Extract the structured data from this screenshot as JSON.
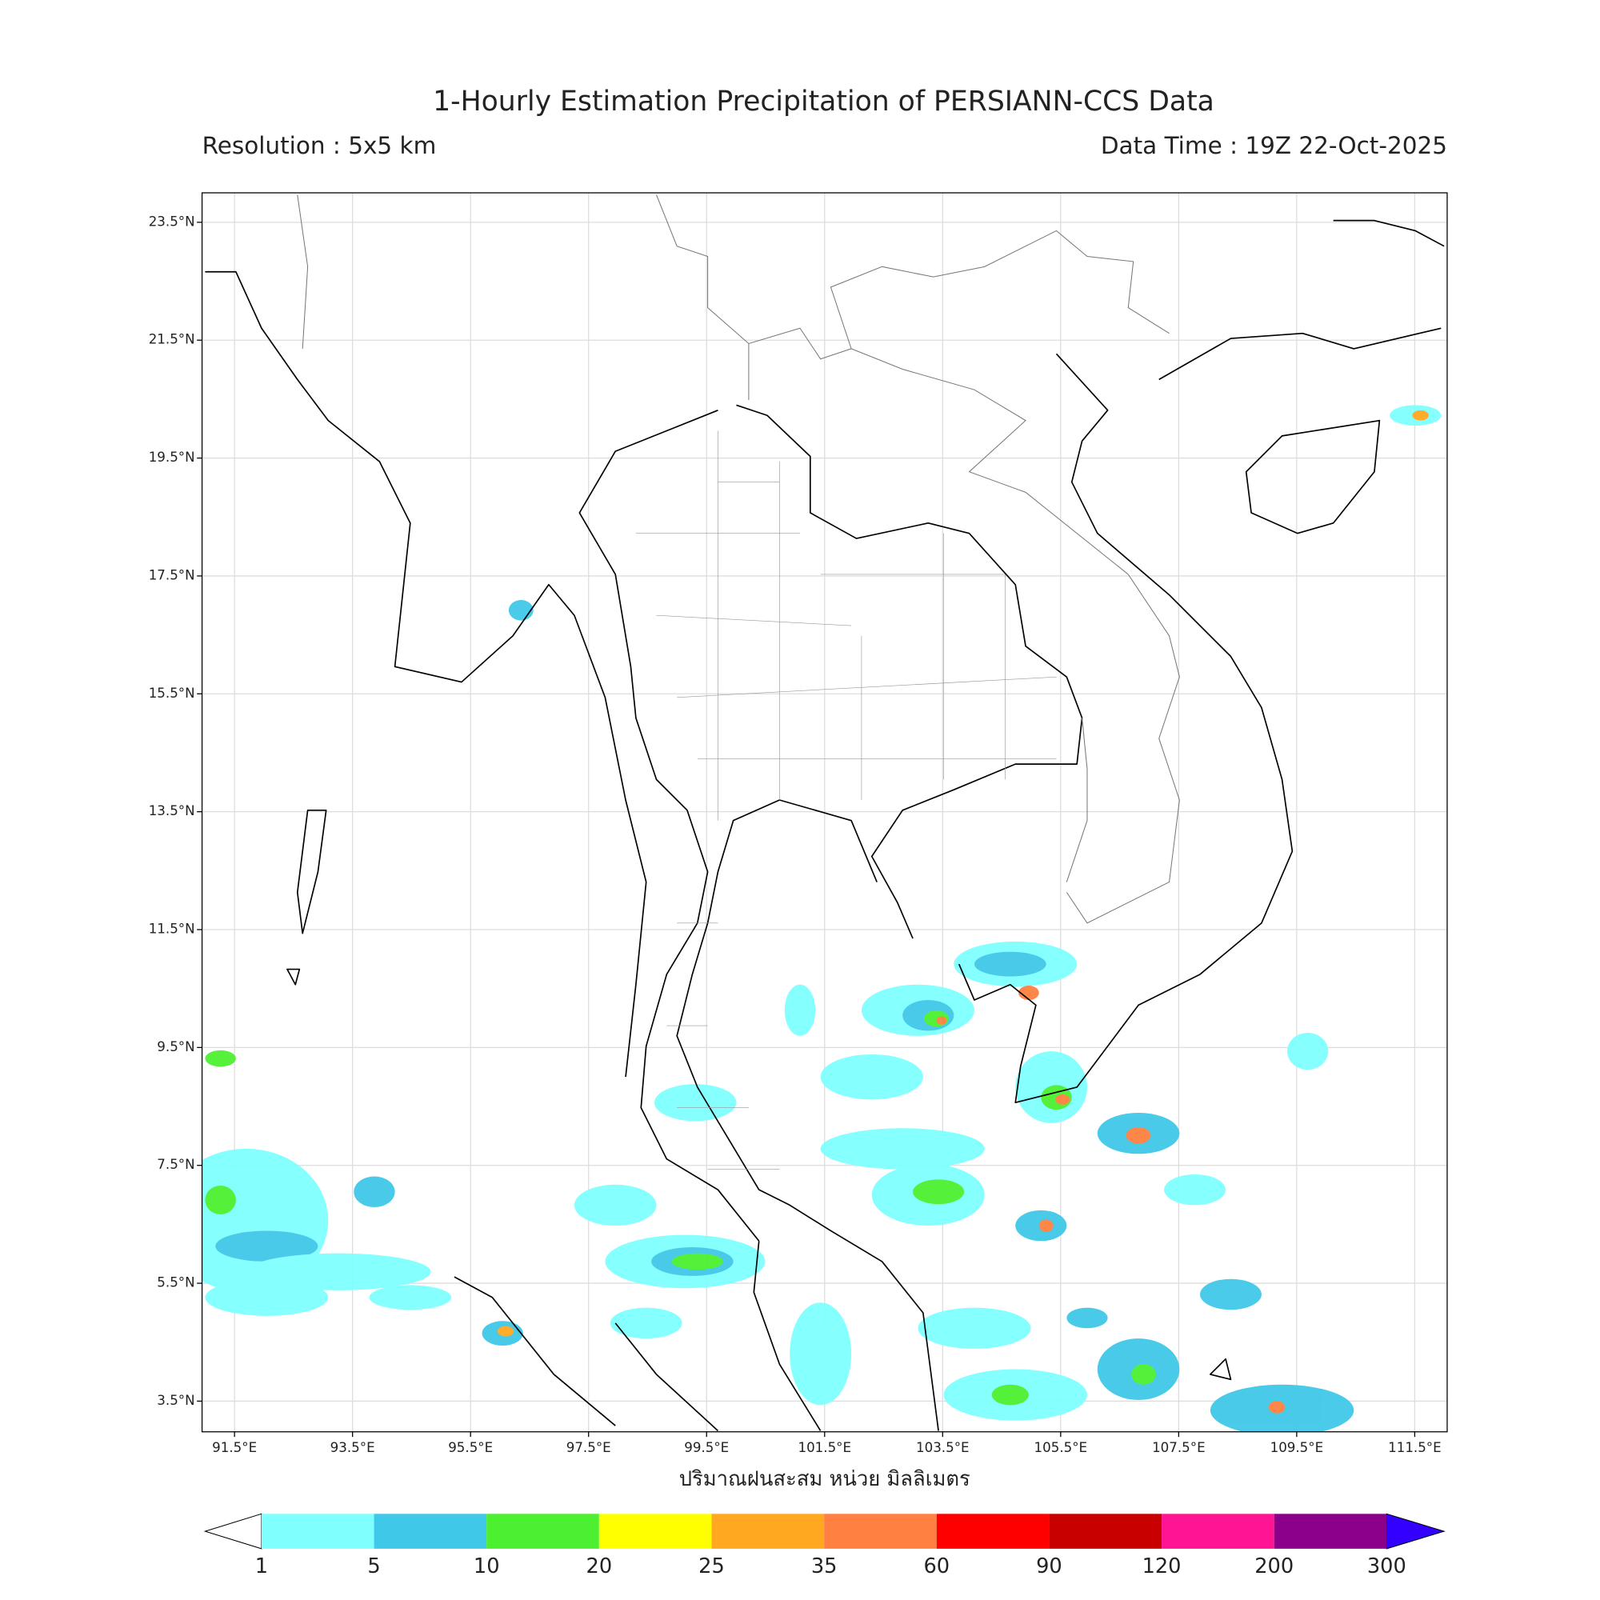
{
  "header": {
    "title": "1-Hourly Estimation Precipitation of PERSIANN-CCS Data",
    "resolution": "Resolution : 5x5 km",
    "data_time": "Data Time : 19Z 22-Oct-2025"
  },
  "map": {
    "lon_lim": [
      90.95,
      112.05
    ],
    "lat_lim": [
      2.98,
      24.0
    ],
    "grid": true,
    "lon_ticks": [
      {
        "value": 91.5,
        "label": "91.5°E"
      },
      {
        "value": 93.5,
        "label": "93.5°E"
      },
      {
        "value": 95.5,
        "label": "95.5°E"
      },
      {
        "value": 97.5,
        "label": "97.5°E"
      },
      {
        "value": 99.5,
        "label": "99.5°E"
      },
      {
        "value": 101.5,
        "label": "101.5°E"
      },
      {
        "value": 103.5,
        "label": "103.5°E"
      },
      {
        "value": 105.5,
        "label": "105.5°E"
      },
      {
        "value": 107.5,
        "label": "107.5°E"
      },
      {
        "value": 109.5,
        "label": "109.5°E"
      },
      {
        "value": 111.5,
        "label": "111.5°E"
      }
    ],
    "lat_ticks": [
      {
        "value": 23.5,
        "label": "23.5°N"
      },
      {
        "value": 21.5,
        "label": "21.5°N"
      },
      {
        "value": 19.5,
        "label": "19.5°N"
      },
      {
        "value": 17.5,
        "label": "17.5°N"
      },
      {
        "value": 15.5,
        "label": "15.5°N"
      },
      {
        "value": 13.5,
        "label": "13.5°N"
      },
      {
        "value": 11.5,
        "label": "11.5°N"
      },
      {
        "value": 9.5,
        "label": "9.5°N"
      },
      {
        "value": 7.5,
        "label": "7.5°N"
      },
      {
        "value": 5.5,
        "label": "5.5°N"
      },
      {
        "value": 3.5,
        "label": "3.5°N"
      }
    ]
  },
  "x_label": "ปริมาณฝนสะสม หน่วย มิลลิเมตร",
  "colorbar": {
    "levels": [
      1,
      5,
      10,
      20,
      25,
      35,
      60,
      90,
      120,
      200,
      300
    ],
    "colors": [
      "#80ffff",
      "#40c8e8",
      "#4cf030",
      "#ffff00",
      "#ffa820",
      "#ff8040",
      "#ff0000",
      "#c80000",
      "#ff1493",
      "#8b008b"
    ],
    "under_color": "#ffffff",
    "over_color": "#3300ff"
  }
}
